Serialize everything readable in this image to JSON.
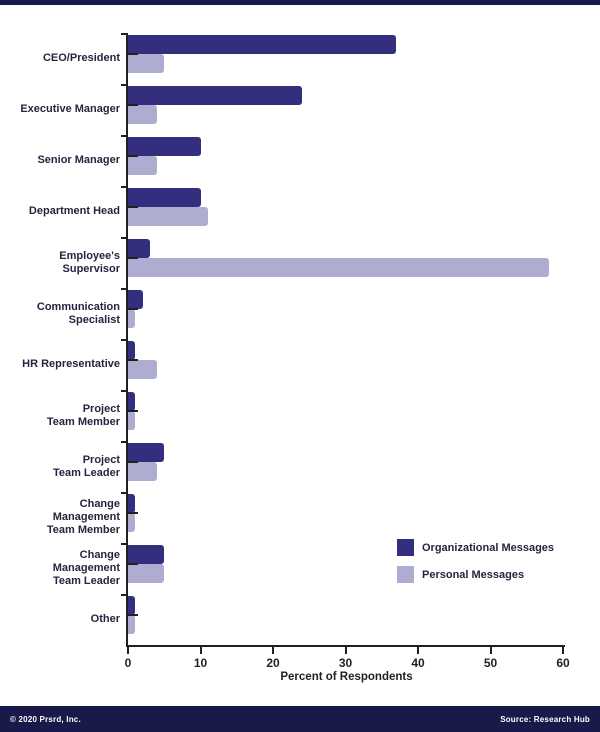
{
  "chart_data": {
    "type": "bar",
    "orientation": "horizontal",
    "title": "",
    "xlabel": "Percent of Respondents",
    "ylabel": "",
    "xlim": [
      0,
      60
    ],
    "xticks": [
      0,
      10,
      20,
      30,
      40,
      50,
      60
    ],
    "grid": false,
    "legend_position": "right-middle",
    "categories": [
      "CEO/President",
      "Executive Manager",
      "Senior Manager",
      "Department Head",
      "Employee's Supervisor",
      "Communication Specialist",
      "HR Representative",
      "Project Team Member",
      "Project Team Leader",
      "Change Management Team Member",
      "Change Management Team Leader",
      "Other"
    ],
    "category_label_lines": [
      [
        "CEO/President"
      ],
      [
        "Executive Manager"
      ],
      [
        "Senior Manager"
      ],
      [
        "Department Head"
      ],
      [
        "Employee's",
        "Supervisor"
      ],
      [
        "Communication",
        "Specialist"
      ],
      [
        "HR Representative"
      ],
      [
        "Project",
        "Team Member"
      ],
      [
        "Project",
        "Team Leader"
      ],
      [
        "Change",
        "Management",
        "Team Member"
      ],
      [
        "Change",
        "Management",
        "Team Leader"
      ],
      [
        "Other"
      ]
    ],
    "series": [
      {
        "name": "Organizational Messages",
        "color": "#332e7d",
        "values": [
          37,
          24,
          10,
          10,
          3,
          2,
          1,
          1,
          5,
          1,
          5,
          1
        ]
      },
      {
        "name": "Personal Messages",
        "color": "#aeacd0",
        "values": [
          5,
          4,
          4,
          11,
          58,
          1,
          4,
          1,
          4,
          1,
          5,
          1
        ]
      }
    ]
  },
  "colors": {
    "band": "#191a4a",
    "axis": "#231f20",
    "organizational": "#332e7d",
    "personal": "#aeacd0"
  },
  "footer": {
    "left": "© 2020 Prsrd, Inc.",
    "right": "Source: Research Hub"
  }
}
